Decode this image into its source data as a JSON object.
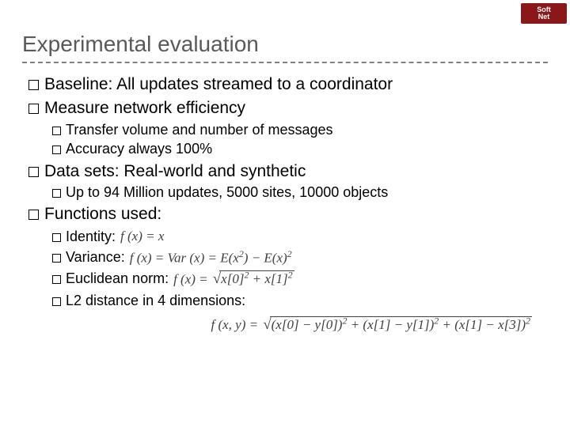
{
  "logo": {
    "top": "Soft",
    "bottom": "Net",
    "bg_color": "#8a1818",
    "text_color": "#ffffff"
  },
  "title": "Experimental evaluation",
  "colors": {
    "title": "#595959",
    "body": "#000000",
    "formula": "#404040",
    "divider": "#808080",
    "background": "#ffffff"
  },
  "fonts": {
    "title_size": 28,
    "l1_size": 21,
    "l2_size": 18,
    "formula_size": 17,
    "formula_family": "Times New Roman"
  },
  "items": {
    "baseline_label": "Baseline:",
    "baseline_text": " All updates streamed to a coordinator",
    "measure": "Measure network efficiency",
    "transfer": "Transfer volume and number of messages",
    "accuracy": "Accuracy always 100%",
    "datasets": "Data sets: Real-world and synthetic",
    "up": "Up to 94 Million updates, 5000 sites, 10000 objects",
    "functions": "Functions used:",
    "identity_label": "Identity:",
    "identity_formula": "f (x) = x",
    "variance_label": "Variance:",
    "variance_formula_html": "f (x) = Var (x) = E(x<sup>2</sup>) − E(x)<sup>2</sup>",
    "euclid_label": "Euclidean norm:",
    "euclid_formula_html": "f (x) = <span class='sqrt'><span>x[0]<sup>2</sup> + x[1]<sup>2</sup></span></span>",
    "l2_label": "L2 distance in 4 dimensions:",
    "l2_formula_html": "f (x, y) = <span class='sqrt'><span>(x[0] − y[0])<sup>2</sup> + (x[1] − y[1])<sup>2</sup> + (x[1] − x[3])<sup>2</sup></span></span>"
  }
}
